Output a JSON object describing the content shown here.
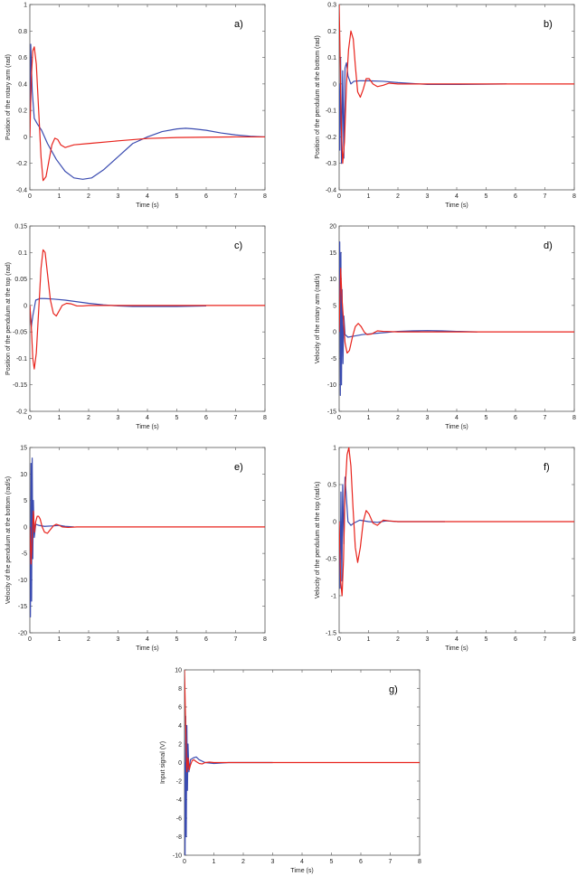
{
  "chart_data": [
    {
      "id": "a",
      "type": "line",
      "panel_label": "a)",
      "xlabel": "Time (s)",
      "ylabel": "Position of the rotary arm (rad)",
      "xlim": [
        0,
        8
      ],
      "ylim": [
        -0.4,
        1
      ],
      "xticks": [
        0,
        1,
        2,
        3,
        4,
        5,
        6,
        7,
        8
      ],
      "yticks": [
        -0.4,
        -0.2,
        0,
        0.2,
        0.4,
        0.6,
        0.8,
        1
      ],
      "ytick_labels": [
        "-0.4",
        "-0.2",
        "0",
        "0.2",
        "0.4",
        "0.6",
        "0.8",
        "1"
      ],
      "series": [
        {
          "color": "#3a4bb0",
          "x": [
            0,
            0.03,
            0.08,
            0.15,
            0.25,
            0.4,
            0.6,
            0.9,
            1.2,
            1.5,
            1.8,
            2.1,
            2.5,
            3.0,
            3.5,
            4.0,
            4.5,
            5.0,
            5.3,
            5.6,
            6.0,
            6.5,
            7.0,
            7.5,
            8.0
          ],
          "y": [
            0,
            0.7,
            0.35,
            0.14,
            0.1,
            0.05,
            -0.05,
            -0.17,
            -0.26,
            -0.31,
            -0.32,
            -0.31,
            -0.25,
            -0.15,
            -0.05,
            0.0,
            0.04,
            0.06,
            0.065,
            0.06,
            0.05,
            0.03,
            0.015,
            0.005,
            0.0
          ]
        },
        {
          "color": "#e8231c",
          "x": [
            0,
            0.05,
            0.1,
            0.15,
            0.22,
            0.3,
            0.38,
            0.45,
            0.55,
            0.65,
            0.75,
            0.85,
            0.95,
            1.05,
            1.2,
            1.5,
            2.0,
            3.0,
            4.0,
            5.0,
            6.0,
            7.0,
            8.0
          ],
          "y": [
            0,
            0.45,
            0.65,
            0.68,
            0.55,
            0.2,
            -0.15,
            -0.33,
            -0.3,
            -0.18,
            -0.06,
            -0.01,
            -0.02,
            -0.06,
            -0.08,
            -0.06,
            -0.05,
            -0.03,
            -0.012,
            -0.005,
            -0.002,
            0.0,
            0.0
          ]
        }
      ]
    },
    {
      "id": "b",
      "type": "line",
      "panel_label": "b)",
      "xlabel": "Time (s)",
      "ylabel": "Position of the pendulum at the bottom (rad)",
      "xlim": [
        0,
        8
      ],
      "ylim": [
        -0.4,
        0.3
      ],
      "xticks": [
        0,
        1,
        2,
        3,
        4,
        5,
        6,
        7,
        8
      ],
      "yticks": [
        -0.4,
        -0.3,
        -0.2,
        -0.1,
        0,
        0.1,
        0.2,
        0.3
      ],
      "ytick_labels": [
        "-0.4",
        "-0.3",
        "-0.2",
        "-0.1",
        "0",
        "0.1",
        "0.2",
        "0.3"
      ],
      "series": [
        {
          "color": "#3a4bb0",
          "x": [
            0,
            0.02,
            0.05,
            0.08,
            0.12,
            0.16,
            0.2,
            0.25,
            0.3,
            0.4,
            0.5,
            0.7,
            1.0,
            1.5,
            2.0,
            3.0,
            4.0,
            5.0,
            5.7
          ],
          "y": [
            0,
            -0.25,
            0.1,
            -0.3,
            0.05,
            -0.28,
            0.06,
            0.08,
            0.03,
            0.0,
            0.01,
            0.012,
            0.012,
            0.01,
            0.005,
            -0.002,
            -0.002,
            -0.001,
            0.0
          ]
        },
        {
          "color": "#e8231c",
          "x": [
            0,
            0.03,
            0.07,
            0.12,
            0.18,
            0.25,
            0.32,
            0.4,
            0.48,
            0.55,
            0.63,
            0.72,
            0.82,
            0.92,
            1.02,
            1.15,
            1.3,
            1.5,
            1.7,
            2.0,
            2.5,
            3.0,
            4.0,
            5.0,
            6.0,
            7.0,
            8.0
          ],
          "y": [
            0.3,
            0.12,
            -0.15,
            -0.3,
            -0.22,
            0.0,
            0.13,
            0.2,
            0.17,
            0.07,
            -0.03,
            -0.05,
            -0.02,
            0.02,
            0.02,
            0.0,
            -0.01,
            -0.005,
            0.003,
            0.0,
            0.0,
            0.0,
            0.0,
            0.0,
            0.0,
            0.0,
            0.0
          ]
        }
      ]
    },
    {
      "id": "c",
      "type": "line",
      "panel_label": "c)",
      "xlabel": "Time (s)",
      "ylabel": "Position of the pendulum at the top (rad)",
      "xlim": [
        0,
        8
      ],
      "ylim": [
        -0.2,
        0.15
      ],
      "xticks": [
        0,
        1,
        2,
        3,
        4,
        5,
        6,
        7,
        8
      ],
      "yticks": [
        -0.2,
        -0.15,
        -0.1,
        -0.05,
        0,
        0.05,
        0.1,
        0.15
      ],
      "ytick_labels": [
        "-0.2",
        "-0.15",
        "-0.1",
        "-0.05",
        "0",
        "0.05",
        "0.1",
        "0.15"
      ],
      "series": [
        {
          "color": "#3a4bb0",
          "x": [
            0,
            0.05,
            0.1,
            0.2,
            0.35,
            0.5,
            0.8,
            1.2,
            1.6,
            2.0,
            2.5,
            3.0,
            3.5,
            4.0,
            5.0,
            6.0
          ],
          "y": [
            0,
            -0.04,
            -0.02,
            0.01,
            0.013,
            0.013,
            0.012,
            0.01,
            0.007,
            0.004,
            0.001,
            -0.001,
            -0.002,
            -0.002,
            -0.002,
            -0.001
          ]
        },
        {
          "color": "#e8231c",
          "x": [
            0,
            0.05,
            0.1,
            0.15,
            0.22,
            0.3,
            0.38,
            0.45,
            0.52,
            0.6,
            0.7,
            0.8,
            0.9,
            1.0,
            1.1,
            1.25,
            1.4,
            1.6,
            1.8,
            2.0,
            2.5,
            3.0,
            4.0,
            5.0,
            6.0,
            7.0,
            8.0
          ],
          "y": [
            0,
            -0.04,
            -0.1,
            -0.12,
            -0.09,
            -0.01,
            0.07,
            0.105,
            0.1,
            0.06,
            0.01,
            -0.015,
            -0.02,
            -0.01,
            0.0,
            0.004,
            0.003,
            -0.001,
            -0.001,
            0.0,
            0.0,
            0.0,
            0.0,
            0.0,
            0.0,
            0.0,
            0.0
          ]
        }
      ]
    },
    {
      "id": "d",
      "type": "line",
      "panel_label": "d)",
      "xlabel": "Time (s)",
      "ylabel": "Velocity of the rotary arm (rad/s)",
      "xlim": [
        0,
        8
      ],
      "ylim": [
        -15,
        20
      ],
      "xticks": [
        0,
        1,
        2,
        3,
        4,
        5,
        6,
        7,
        8
      ],
      "yticks": [
        -15,
        -10,
        -5,
        0,
        5,
        10,
        15,
        20
      ],
      "ytick_labels": [
        "-15",
        "-10",
        "-5",
        "0",
        "5",
        "10",
        "15",
        "20"
      ],
      "series": [
        {
          "color": "#3a4bb0",
          "x": [
            0,
            0.02,
            0.04,
            0.06,
            0.08,
            0.1,
            0.13,
            0.16,
            0.2,
            0.3,
            0.5,
            0.8,
            1.2,
            1.6,
            2.0,
            2.5,
            3.0,
            3.5,
            4.0,
            4.7
          ],
          "y": [
            0,
            17,
            -12,
            15,
            -10,
            8,
            -6,
            3,
            -0.5,
            -1,
            -0.8,
            -0.5,
            -0.3,
            -0.1,
            0.1,
            0.2,
            0.25,
            0.2,
            0.1,
            0.0
          ]
        },
        {
          "color": "#e8231c",
          "x": [
            0,
            0.05,
            0.1,
            0.15,
            0.2,
            0.27,
            0.35,
            0.45,
            0.55,
            0.65,
            0.75,
            0.85,
            0.95,
            1.1,
            1.3,
            1.5,
            2.0,
            3.0,
            4.0,
            5.0,
            6.0,
            7.0,
            8.0
          ],
          "y": [
            0,
            12,
            6,
            2,
            -2,
            -4,
            -3.5,
            -1,
            1,
            1.6,
            1,
            0,
            -0.5,
            -0.4,
            0.2,
            0.1,
            0.0,
            0.0,
            0.0,
            0.0,
            0.0,
            0.0,
            0.0
          ]
        }
      ]
    },
    {
      "id": "e",
      "type": "line",
      "panel_label": "e)",
      "xlabel": "Time (s)",
      "ylabel": "Velocity of the pendulum at the bottom (rad/s)",
      "xlim": [
        0,
        8
      ],
      "ylim": [
        -20,
        15
      ],
      "xticks": [
        0,
        1,
        2,
        3,
        4,
        5,
        6,
        7,
        8
      ],
      "yticks": [
        -20,
        -15,
        -10,
        -5,
        0,
        5,
        10,
        15
      ],
      "ytick_labels": [
        "-20",
        "-15",
        "-10",
        "-5",
        "0",
        "5",
        "10",
        "15"
      ],
      "series": [
        {
          "color": "#3a4bb0",
          "x": [
            0,
            0.02,
            0.04,
            0.06,
            0.08,
            0.1,
            0.12,
            0.15,
            0.2,
            0.3,
            0.5,
            0.8,
            1.0,
            1.2,
            1.5
          ],
          "y": [
            0,
            -17,
            12,
            -14,
            13,
            -6,
            5,
            -2,
            0.5,
            0.3,
            0.1,
            0.2,
            0.3,
            0.1,
            0.0
          ]
        },
        {
          "color": "#e8231c",
          "x": [
            0,
            0.04,
            0.08,
            0.12,
            0.16,
            0.2,
            0.25,
            0.3,
            0.35,
            0.42,
            0.5,
            0.6,
            0.7,
            0.8,
            0.9,
            1.0,
            1.1,
            1.3,
            1.6,
            2.0,
            3.0,
            4.0,
            5.0,
            6.0,
            7.0,
            8.0
          ],
          "y": [
            0,
            -7,
            -2,
            3,
            -1,
            1,
            2,
            2,
            1.5,
            0,
            -1,
            -1.2,
            -0.5,
            0.2,
            0.5,
            0.3,
            0.0,
            -0.1,
            0.0,
            0.0,
            0.0,
            0.0,
            0.0,
            0.0,
            0.0,
            0.0
          ]
        }
      ]
    },
    {
      "id": "f",
      "type": "line",
      "panel_label": "f)",
      "xlabel": "Time (s)",
      "ylabel": "Velocity of the pendulum at the top (rad/s)",
      "xlim": [
        0,
        8
      ],
      "ylim": [
        -1.5,
        1
      ],
      "xticks": [
        0,
        1,
        2,
        3,
        4,
        5,
        6,
        7,
        8
      ],
      "yticks": [
        -1.5,
        -1,
        -0.5,
        0,
        0.5,
        1
      ],
      "ytick_labels": [
        "-1.5",
        "-1",
        "-0.5",
        "0",
        "0.5",
        "1"
      ],
      "series": [
        {
          "color": "#3a4bb0",
          "x": [
            0,
            0.03,
            0.06,
            0.09,
            0.12,
            0.16,
            0.2,
            0.25,
            0.3,
            0.4,
            0.5,
            0.7,
            1.0,
            1.3,
            1.6,
            2.0,
            2.5,
            3.0,
            3.6
          ],
          "y": [
            0,
            -0.9,
            0.4,
            -0.8,
            0.5,
            -0.3,
            0.6,
            0.3,
            0.0,
            -0.05,
            -0.02,
            0.02,
            0.0,
            -0.01,
            0.01,
            0.0,
            0.0,
            0.0,
            0.0
          ]
        },
        {
          "color": "#e8231c",
          "x": [
            0,
            0.05,
            0.1,
            0.15,
            0.2,
            0.27,
            0.33,
            0.4,
            0.47,
            0.55,
            0.63,
            0.72,
            0.82,
            0.92,
            1.02,
            1.15,
            1.3,
            1.5,
            1.7,
            2.0,
            2.5,
            3.0,
            4.0,
            5.0,
            6.0,
            7.0,
            8.0
          ],
          "y": [
            0,
            -0.8,
            -1.0,
            -0.5,
            0.4,
            0.9,
            1.0,
            0.75,
            0.2,
            -0.35,
            -0.55,
            -0.35,
            0.0,
            0.15,
            0.1,
            -0.02,
            -0.05,
            0.02,
            0.01,
            0.0,
            0.0,
            0.0,
            0.0,
            0.0,
            0.0,
            0.0,
            0.0
          ]
        }
      ]
    },
    {
      "id": "g",
      "type": "line",
      "panel_label": "g)",
      "xlabel": "Time (s)",
      "ylabel": "Input signal (V)",
      "xlim": [
        0,
        8
      ],
      "ylim": [
        -10,
        10
      ],
      "xticks": [
        0,
        1,
        2,
        3,
        4,
        5,
        6,
        7,
        8
      ],
      "yticks": [
        -10,
        -8,
        -6,
        -4,
        -2,
        0,
        2,
        4,
        6,
        8,
        10
      ],
      "ytick_labels": [
        "-10",
        "-8",
        "-6",
        "-4",
        "-2",
        "0",
        "2",
        "4",
        "6",
        "8",
        "10"
      ],
      "series": [
        {
          "color": "#3a4bb0",
          "x": [
            0,
            0.02,
            0.04,
            0.06,
            0.08,
            0.1,
            0.12,
            0.15,
            0.2,
            0.3,
            0.4,
            0.5,
            0.7,
            1.0,
            1.5,
            2.0,
            2.5,
            3.0
          ],
          "y": [
            0,
            -10,
            5,
            -8,
            4,
            -3,
            2,
            -1,
            0.3,
            0.5,
            0.6,
            0.3,
            0.0,
            -0.1,
            0.0,
            0.0,
            0.0,
            0.0
          ]
        },
        {
          "color": "#e8231c",
          "x": [
            0,
            0.04,
            0.08,
            0.12,
            0.16,
            0.2,
            0.26,
            0.32,
            0.4,
            0.5,
            0.6,
            0.7,
            0.85,
            1.0,
            1.2,
            1.5,
            2.0,
            3.0,
            4.0,
            5.0,
            6.0,
            7.0,
            8.0
          ],
          "y": [
            10,
            4,
            -1,
            0.5,
            -0.8,
            -0.3,
            0.2,
            0.3,
            0.1,
            -0.1,
            -0.15,
            0.0,
            0.05,
            0.0,
            0.0,
            0.0,
            0.0,
            0.0,
            0.0,
            0.0,
            0.0,
            0.0,
            0.0
          ]
        }
      ]
    }
  ]
}
